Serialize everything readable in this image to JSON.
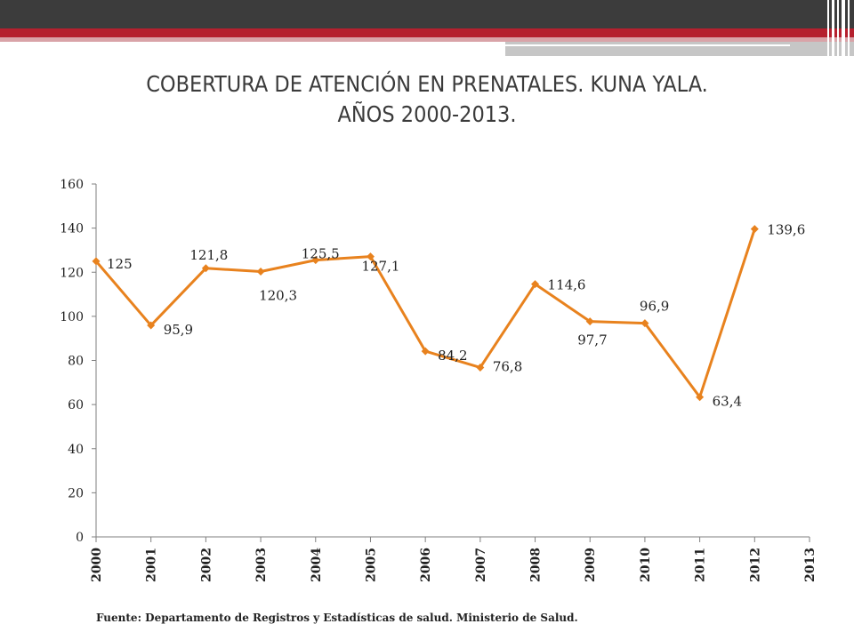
{
  "chart_data": {
    "type": "line",
    "title": "COBERTURA DE ATENCIÓN EN PRENATALES. KUNA YALA.",
    "subtitle": "AÑOS 2000-2013.",
    "categories": [
      "2000",
      "2001",
      "2002",
      "2003",
      "2004",
      "2005",
      "2006",
      "2007",
      "2008",
      "2009",
      "2010",
      "2011",
      "2012",
      "2013"
    ],
    "values": [
      125,
      95.9,
      121.8,
      120.3,
      125.5,
      127.1,
      84.2,
      76.8,
      114.6,
      97.7,
      96.9,
      63.4,
      139.6,
      null
    ],
    "data_labels": [
      "125",
      "95,9",
      "121,8",
      "120,3",
      "125,5",
      "127,1",
      "84,2",
      "76,8",
      "114,6",
      "97,7",
      "96,9",
      "63,4",
      "139,6",
      ""
    ],
    "yticks": [
      "0",
      "20",
      "40",
      "60",
      "80",
      "100",
      "120",
      "140",
      "160"
    ],
    "ylim": [
      0,
      160
    ],
    "xlabel": "",
    "ylabel": "",
    "grid": false,
    "legend": "none",
    "line_color": "#e8821e"
  },
  "source_note": "Fuente: Departamento de Registros y Estadísticas de salud. Ministerio de Salud."
}
